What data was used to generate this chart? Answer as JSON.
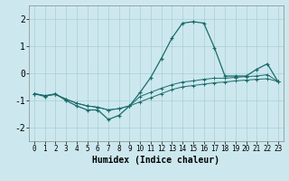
{
  "x": [
    0,
    1,
    2,
    3,
    4,
    5,
    6,
    7,
    8,
    9,
    10,
    11,
    12,
    13,
    14,
    15,
    16,
    17,
    18,
    19,
    20,
    21,
    22,
    23
  ],
  "y_main": [
    -0.75,
    -0.85,
    -0.75,
    -1.0,
    -1.2,
    -1.35,
    -1.35,
    -1.7,
    -1.55,
    -1.2,
    -0.7,
    -0.15,
    0.55,
    1.3,
    1.85,
    1.9,
    1.85,
    0.95,
    -0.1,
    -0.1,
    -0.1,
    0.15,
    0.35,
    -0.3
  ],
  "y_low": [
    -0.75,
    -0.82,
    -0.78,
    -0.95,
    -1.1,
    -1.2,
    -1.25,
    -1.35,
    -1.3,
    -1.2,
    -1.05,
    -0.9,
    -0.75,
    -0.6,
    -0.5,
    -0.45,
    -0.4,
    -0.35,
    -0.32,
    -0.28,
    -0.25,
    -0.22,
    -0.2,
    -0.3
  ],
  "y_high": [
    -0.75,
    -0.82,
    -0.78,
    -0.95,
    -1.1,
    -1.2,
    -1.25,
    -1.35,
    -1.3,
    -1.2,
    -0.85,
    -0.7,
    -0.55,
    -0.42,
    -0.32,
    -0.28,
    -0.22,
    -0.18,
    -0.18,
    -0.15,
    -0.12,
    -0.1,
    -0.05,
    -0.3
  ],
  "bg_color": "#cce8ee",
  "line_color": "#1a6b6b",
  "grid_color": "#aacdd6",
  "xlabel": "Humidex (Indice chaleur)",
  "ylim": [
    -2.5,
    2.5
  ],
  "xlim": [
    -0.5,
    23.5
  ],
  "yticks": [
    -2,
    -1,
    0,
    1,
    2
  ],
  "xticks": [
    0,
    1,
    2,
    3,
    4,
    5,
    6,
    7,
    8,
    9,
    10,
    11,
    12,
    13,
    14,
    15,
    16,
    17,
    18,
    19,
    20,
    21,
    22,
    23
  ],
  "xlabel_fontsize": 7,
  "ytick_fontsize": 7,
  "xtick_fontsize": 5.5
}
